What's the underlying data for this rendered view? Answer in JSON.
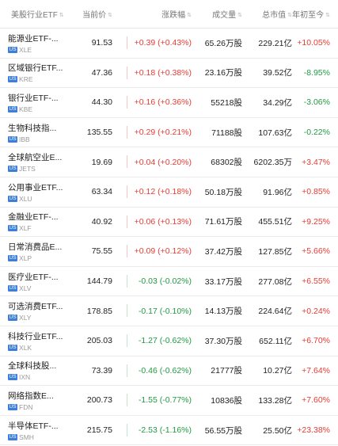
{
  "header": {
    "name": "美股行业ETF",
    "price": "当前价",
    "change": "涨跌幅",
    "volume": "成交量",
    "market_cap": "总市值",
    "ytd": "年初至今"
  },
  "rows": [
    {
      "name": "能源业ETF-...",
      "ticker": "XLE",
      "price": "91.53",
      "change": "+0.39 (+0.43%)",
      "volume": "65.26万股",
      "market_cap": "229.21亿",
      "ytd": "+10.05%",
      "change_dir": "up",
      "ytd_dir": "up"
    },
    {
      "name": "区域银行ETF...",
      "ticker": "KRE",
      "price": "47.36",
      "change": "+0.18 (+0.38%)",
      "volume": "23.16万股",
      "market_cap": "39.52亿",
      "ytd": "-8.95%",
      "change_dir": "up",
      "ytd_dir": "down"
    },
    {
      "name": "银行业ETF-...",
      "ticker": "KBE",
      "price": "44.30",
      "change": "+0.16 (+0.36%)",
      "volume": "55218股",
      "market_cap": "34.29亿",
      "ytd": "-3.06%",
      "change_dir": "up",
      "ytd_dir": "down"
    },
    {
      "name": "生物科技指...",
      "ticker": "IBB",
      "price": "135.55",
      "change": "+0.29 (+0.21%)",
      "volume": "71188股",
      "market_cap": "107.63亿",
      "ytd": "-0.22%",
      "change_dir": "up",
      "ytd_dir": "down"
    },
    {
      "name": "全球航空业E...",
      "ticker": "JETS",
      "price": "19.69",
      "change": "+0.04 (+0.20%)",
      "volume": "68302股",
      "market_cap": "6202.35万",
      "ytd": "+3.47%",
      "change_dir": "up",
      "ytd_dir": "up"
    },
    {
      "name": "公用事业ETF...",
      "ticker": "XLU",
      "price": "63.34",
      "change": "+0.12 (+0.18%)",
      "volume": "50.18万股",
      "market_cap": "91.96亿",
      "ytd": "+0.85%",
      "change_dir": "up",
      "ytd_dir": "up"
    },
    {
      "name": "金融业ETF-...",
      "ticker": "XLF",
      "price": "40.92",
      "change": "+0.06 (+0.13%)",
      "volume": "71.61万股",
      "market_cap": "455.51亿",
      "ytd": "+9.25%",
      "change_dir": "up",
      "ytd_dir": "up"
    },
    {
      "name": "日常消费品E...",
      "ticker": "XLP",
      "price": "75.55",
      "change": "+0.09 (+0.12%)",
      "volume": "37.42万股",
      "market_cap": "127.85亿",
      "ytd": "+5.66%",
      "change_dir": "up",
      "ytd_dir": "up"
    },
    {
      "name": "医疗业ETF-...",
      "ticker": "XLV",
      "price": "144.79",
      "change": "-0.03 (-0.02%)",
      "volume": "33.17万股",
      "market_cap": "277.08亿",
      "ytd": "+6.55%",
      "change_dir": "down",
      "ytd_dir": "up"
    },
    {
      "name": "可选消费ETF...",
      "ticker": "XLY",
      "price": "178.85",
      "change": "-0.17 (-0.10%)",
      "volume": "14.13万股",
      "market_cap": "224.64亿",
      "ytd": "+0.24%",
      "change_dir": "down",
      "ytd_dir": "up"
    },
    {
      "name": "科技行业ETF...",
      "ticker": "XLK",
      "price": "205.03",
      "change": "-1.27 (-0.62%)",
      "volume": "37.30万股",
      "market_cap": "652.11亿",
      "ytd": "+6.70%",
      "change_dir": "down",
      "ytd_dir": "up"
    },
    {
      "name": "全球科技股...",
      "ticker": "IXN",
      "price": "73.39",
      "change": "-0.46 (-0.62%)",
      "volume": "21777股",
      "market_cap": "10.27亿",
      "ytd": "+7.64%",
      "change_dir": "down",
      "ytd_dir": "up"
    },
    {
      "name": "网络指数E...",
      "ticker": "FDN",
      "price": "200.73",
      "change": "-1.55 (-0.77%)",
      "volume": "10836股",
      "market_cap": "133.28亿",
      "ytd": "+7.60%",
      "change_dir": "down",
      "ytd_dir": "up"
    },
    {
      "name": "半导体ETF-...",
      "ticker": "SMH",
      "price": "215.75",
      "change": "-2.53 (-1.16%)",
      "volume": "56.55万股",
      "market_cap": "25.50亿",
      "ytd": "+23.38%",
      "change_dir": "down",
      "ytd_dir": "up"
    }
  ],
  "badge": "US",
  "icons": {
    "sort": "sort-arrow-icon"
  },
  "colors": {
    "up": "#e83b33",
    "down": "#229a43",
    "badge": "#3d7fd6"
  }
}
